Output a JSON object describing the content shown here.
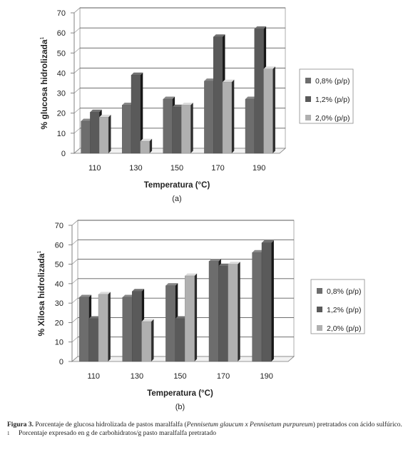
{
  "chart_data": [
    {
      "type": "bar",
      "ylabel": "% glucosa hidrolizada",
      "ylabel_sup": "1",
      "xlabel": "Temperatura (°C)",
      "panel_label": "(a)",
      "categories": [
        "110",
        "130",
        "150",
        "170",
        "190"
      ],
      "yticks": [
        "0",
        "10",
        "20",
        "30",
        "40",
        "50",
        "60",
        "70"
      ],
      "ylim": [
        0,
        70
      ],
      "grid": true,
      "legend_position": "right",
      "series": [
        {
          "name": "0,8% (p/p)",
          "values": [
            16,
            24,
            27,
            36,
            27
          ],
          "color": "#6d6d6d"
        },
        {
          "name": "1,2% (p/p)",
          "values": [
            20.5,
            39,
            23,
            58,
            62
          ],
          "color": "#5a5a5a"
        },
        {
          "name": "2,0% (p/p)",
          "values": [
            18,
            6,
            24,
            35.5,
            42
          ],
          "color": "#b0b0b0"
        }
      ]
    },
    {
      "type": "bar",
      "ylabel": "% Xilosa hidrolizada",
      "ylabel_sup": "1",
      "xlabel": "Temperatura (°C)",
      "panel_label": "(b)",
      "categories": [
        "110",
        "130",
        "150",
        "170",
        "190"
      ],
      "yticks": [
        "0",
        "10",
        "20",
        "30",
        "40",
        "50",
        "60",
        "70"
      ],
      "ylim": [
        0,
        70
      ],
      "grid": true,
      "legend_position": "right",
      "series": [
        {
          "name": "0,8% (p/p)",
          "values": [
            33,
            33,
            39,
            51.5,
            56
          ],
          "color": "#6d6d6d"
        },
        {
          "name": "1,2% (p/p)",
          "values": [
            22,
            36,
            22,
            49,
            61
          ],
          "color": "#5a5a5a"
        },
        {
          "name": "2,0% (p/p)",
          "values": [
            34.5,
            20.5,
            44,
            50,
            null
          ],
          "color": "#b0b0b0"
        }
      ]
    }
  ],
  "caption": {
    "label": "Figura 3.",
    "text_before": "Porcentaje de glucosa hidrolizada de pastos maralfalfa (",
    "species": "Pennisetum glaucum x Pennisetum purpureum",
    "text_after": ") pretratados con ácido sulfúrico.",
    "footnote_mark": "1",
    "footnote": "Porcentaje expresado en g de carbohidratos/g pasto maralfalfa pretratado"
  }
}
